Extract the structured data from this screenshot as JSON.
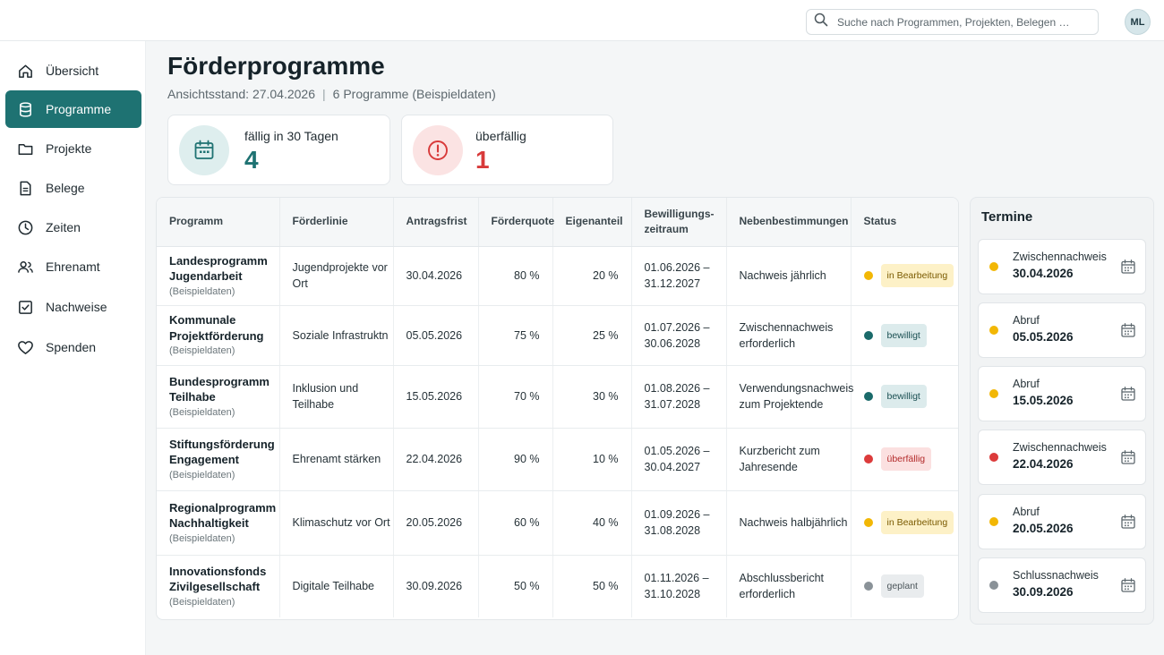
{
  "search": {
    "placeholder": "Suche nach Programmen, Projekten, Belegen …"
  },
  "user": {
    "initials": "ML"
  },
  "sidebar": {
    "items": [
      {
        "label": "Übersicht",
        "icon": "home-icon",
        "active": false
      },
      {
        "label": "Programme",
        "icon": "database-icon",
        "active": true
      },
      {
        "label": "Projekte",
        "icon": "folder-icon",
        "active": false
      },
      {
        "label": "Belege",
        "icon": "document-icon",
        "active": false
      },
      {
        "label": "Zeiten",
        "icon": "clock-icon",
        "active": false
      },
      {
        "label": "Ehrenamt",
        "icon": "users-icon",
        "active": false
      },
      {
        "label": "Nachweise",
        "icon": "checkbox-icon",
        "active": false
      },
      {
        "label": "Spenden",
        "icon": "heart-icon",
        "active": false
      }
    ]
  },
  "header": {
    "title": "Förderprogramme",
    "as_of": "Ansichtsstand: 27.04.2026",
    "separator": "|",
    "count": "6 Programme (Beispieldaten)"
  },
  "kpis": [
    {
      "label": "fällig in 30 Tagen",
      "value": "4",
      "icon": "calendar-icon",
      "color": "#1e7272"
    },
    {
      "label": "überfällig",
      "value": "1",
      "icon": "alert-circle-icon",
      "color": "#d83a3a"
    }
  ],
  "table": {
    "columns": [
      "Programm",
      "Förderlinie",
      "Antragsfrist",
      "Förderquote",
      "Eigenanteil",
      "Bewilligungs-\nzeitraum",
      "Nebenbestimmungen",
      "Status"
    ],
    "rows": [
      {
        "name": "Landesprogramm Jugendarbeit",
        "note": "(Beispieldaten)",
        "line": "Jugendprojekte vor Ort",
        "deadline": "30.04.2026",
        "quota": "80 %",
        "own": "20 %",
        "period": "01.06.2026 – 31.12.2027",
        "conditions": "Nachweis jährlich",
        "status": "in Bearbeitung",
        "status_key": "progress"
      },
      {
        "name": "Kommunale Projektförderung",
        "note": "(Beispieldaten)",
        "line": "Soziale Infrastruktn",
        "deadline": "05.05.2026",
        "quota": "75 %",
        "own": "25 %",
        "period": "01.07.2026 – 30.06.2028",
        "conditions": "Zwischennachweis erforderlich",
        "status": "bewilligt",
        "status_key": "approved"
      },
      {
        "name": "Bundesprogramm Teilhabe",
        "note": "(Beispieldaten)",
        "line": "Inklusion und Teilhabe",
        "deadline": "15.05.2026",
        "quota": "70 %",
        "own": "30 %",
        "period": "01.08.2026 – 31.07.2028",
        "conditions": "Verwendungsnachweis zum Projektende",
        "status": "bewilligt",
        "status_key": "approved"
      },
      {
        "name": "Stiftungsförderung Engagement",
        "note": "(Beispieldaten)",
        "line": "Ehrenamt stärken",
        "deadline": "22.04.2026",
        "quota": "90 %",
        "own": "10 %",
        "period": "01.05.2026 – 30.04.2027",
        "conditions": "Kurzbericht zum Jahresende",
        "status": "überfällig",
        "status_key": "overdue"
      },
      {
        "name": "Regionalprogramm Nachhaltigkeit",
        "note": "(Beispieldaten)",
        "line": "Klimaschutz vor Ort",
        "deadline": "20.05.2026",
        "quota": "60 %",
        "own": "40 %",
        "period": "01.09.2026 – 31.08.2028",
        "conditions": "Nachweis halbjährlich",
        "status": "in Bearbeitung",
        "status_key": "progress"
      },
      {
        "name": "Innovationsfonds Zivilgesellschaft",
        "note": "(Beispieldaten)",
        "line": "Digitale Teilhabe",
        "deadline": "30.09.2026",
        "quota": "50 %",
        "own": "50 %",
        "period": "01.11.2026 – 31.10.2028",
        "conditions": "Abschlussbericht erforderlich",
        "status": "geplant",
        "status_key": "planned"
      }
    ]
  },
  "status_colors": {
    "progress": {
      "dot": "#f2b705",
      "bg": "#fdf1c7",
      "fg": "#7a5a00"
    },
    "approved": {
      "dot": "#1a6a6a",
      "bg": "#dcebec",
      "fg": "#1a4f52"
    },
    "overdue": {
      "dot": "#dc3b3b",
      "bg": "#fbe0e0",
      "fg": "#b32a2a"
    },
    "planned": {
      "dot": "#8a9298",
      "bg": "#e9ecee",
      "fg": "#4b555a"
    }
  },
  "termine": {
    "title": "Termine",
    "items": [
      {
        "type": "Zwischennachweis",
        "date": "30.04.2026",
        "status_key": "progress"
      },
      {
        "type": "Abruf",
        "date": "05.05.2026",
        "status_key": "progress"
      },
      {
        "type": "Abruf",
        "date": "15.05.2026",
        "status_key": "progress"
      },
      {
        "type": "Zwischennachweis",
        "date": "22.04.2026",
        "status_key": "overdue"
      },
      {
        "type": "Abruf",
        "date": "20.05.2026",
        "status_key": "progress"
      },
      {
        "type": "Schlussnachweis",
        "date": "30.09.2026",
        "status_key": "planned"
      }
    ]
  }
}
